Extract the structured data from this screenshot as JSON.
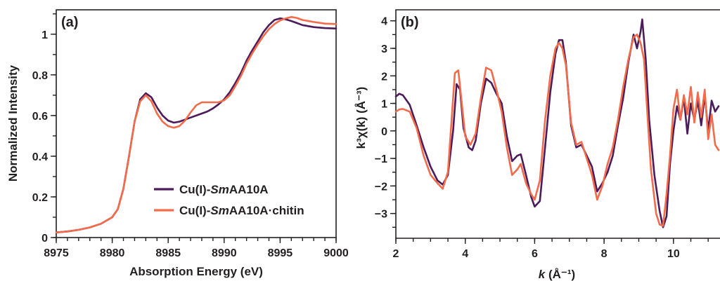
{
  "chart_data": [
    {
      "type": "line",
      "panel_label": "(a)",
      "xlabel": "Absorption Energy (eV)",
      "ylabel": "Normalized Intensity",
      "xlim": [
        8975,
        9000
      ],
      "ylim": [
        0,
        1.12
      ],
      "xticks": [
        8975,
        8980,
        8985,
        8990,
        8995,
        9000
      ],
      "xtick_labels": [
        "8975",
        "8980",
        "8985",
        "8990",
        "8995",
        "9000"
      ],
      "yticks": [
        0,
        0.2,
        0.4,
        0.6,
        0.8,
        1.0
      ],
      "ytick_labels": [
        "0",
        "0.2",
        "0.4",
        "0.6",
        "0.8",
        "1"
      ],
      "legend_position": "bottom-right",
      "series": [
        {
          "name_prefix": "Cu(I)-",
          "name_italic": "Sm",
          "name_suffix": "AA10A",
          "color": "#4b1b5a",
          "x": [
            8975,
            8976,
            8977,
            8978,
            8979,
            8980,
            8980.5,
            8981,
            8981.5,
            8982,
            8982.5,
            8983,
            8983.5,
            8984,
            8984.5,
            8985,
            8985.5,
            8986,
            8986.5,
            8987,
            8987.5,
            8988,
            8988.5,
            8989,
            8989.5,
            8990,
            8990.5,
            8991,
            8991.5,
            8992,
            8992.5,
            8993,
            8993.5,
            8994,
            8994.5,
            8995,
            8995.5,
            8996,
            8996.5,
            8997,
            8998,
            8999,
            9000
          ],
          "y": [
            0.025,
            0.03,
            0.038,
            0.05,
            0.068,
            0.1,
            0.14,
            0.24,
            0.4,
            0.57,
            0.68,
            0.71,
            0.69,
            0.64,
            0.6,
            0.575,
            0.565,
            0.57,
            0.58,
            0.59,
            0.6,
            0.61,
            0.62,
            0.635,
            0.655,
            0.68,
            0.715,
            0.76,
            0.81,
            0.87,
            0.92,
            0.965,
            1.01,
            1.045,
            1.07,
            1.078,
            1.073,
            1.065,
            1.055,
            1.045,
            1.035,
            1.03,
            1.028
          ]
        },
        {
          "name_prefix": "Cu(I)-",
          "name_italic": "Sm",
          "name_suffix": "AA10A·chitin",
          "color": "#f26b4a",
          "x": [
            8975,
            8976,
            8977,
            8978,
            8979,
            8980,
            8980.5,
            8981,
            8981.5,
            8982,
            8982.5,
            8983,
            8983.5,
            8984,
            8984.5,
            8985,
            8985.5,
            8986,
            8986.5,
            8987,
            8987.5,
            8988,
            8988.5,
            8989,
            8989.5,
            8990,
            8990.5,
            8991,
            8991.5,
            8992,
            8992.5,
            8993,
            8993.5,
            8994,
            8994.5,
            8995,
            8995.5,
            8996,
            8996.5,
            8997,
            8998,
            8999,
            9000
          ],
          "y": [
            0.025,
            0.03,
            0.038,
            0.05,
            0.068,
            0.1,
            0.14,
            0.24,
            0.4,
            0.57,
            0.67,
            0.7,
            0.67,
            0.61,
            0.57,
            0.548,
            0.54,
            0.548,
            0.575,
            0.615,
            0.65,
            0.665,
            0.665,
            0.665,
            0.665,
            0.675,
            0.7,
            0.745,
            0.795,
            0.855,
            0.905,
            0.95,
            0.99,
            1.025,
            1.05,
            1.068,
            1.078,
            1.085,
            1.08,
            1.07,
            1.06,
            1.052,
            1.05
          ]
        }
      ]
    },
    {
      "type": "line",
      "panel_label": "(b)",
      "xlabel_italic": "k",
      "xlabel_rest": " (Å⁻¹)",
      "ylabel_html": "k³χ(k) (Å⁻³)",
      "xlim": [
        2,
        11.3
      ],
      "ylim": [
        -3.9,
        4.4
      ],
      "xticks": [
        2,
        4,
        6,
        8,
        10
      ],
      "xtick_labels": [
        "2",
        "4",
        "6",
        "8",
        "10"
      ],
      "yticks": [
        -3,
        -2,
        -1,
        0,
        1,
        2,
        3,
        4
      ],
      "ytick_labels": [
        "−3",
        "−2",
        "−1",
        "0",
        "1",
        "2",
        "3",
        "4"
      ],
      "series": [
        {
          "color": "#4b1b5a",
          "x": [
            2.0,
            2.1,
            2.2,
            2.4,
            2.6,
            2.8,
            3.0,
            3.2,
            3.35,
            3.5,
            3.65,
            3.75,
            3.85,
            3.95,
            4.1,
            4.2,
            4.3,
            4.45,
            4.6,
            4.75,
            4.9,
            5.05,
            5.2,
            5.35,
            5.5,
            5.6,
            5.75,
            5.9,
            6.0,
            6.15,
            6.3,
            6.45,
            6.6,
            6.7,
            6.8,
            6.9,
            7.05,
            7.2,
            7.35,
            7.5,
            7.65,
            7.8,
            7.95,
            8.1,
            8.25,
            8.4,
            8.55,
            8.7,
            8.85,
            8.95,
            9.05,
            9.1,
            9.2,
            9.3,
            9.45,
            9.6,
            9.7,
            9.8,
            9.9,
            10.0,
            10.1,
            10.2,
            10.3,
            10.4,
            10.5,
            10.6,
            10.7,
            10.8,
            10.9,
            11.0,
            11.1,
            11.2,
            11.3
          ],
          "y": [
            1.25,
            1.35,
            1.3,
            0.95,
            0.2,
            -0.6,
            -1.3,
            -1.8,
            -1.95,
            -1.6,
            0.0,
            1.7,
            1.5,
            0.1,
            -0.6,
            -0.7,
            -0.35,
            1.0,
            1.9,
            1.75,
            1.35,
            1.0,
            -0.2,
            -1.1,
            -0.9,
            -0.85,
            -1.6,
            -2.4,
            -2.75,
            -2.55,
            -0.6,
            1.4,
            2.8,
            3.3,
            3.3,
            2.5,
            0.2,
            -0.6,
            -0.5,
            -0.9,
            -1.3,
            -2.2,
            -1.9,
            -1.5,
            -0.9,
            0.2,
            1.2,
            2.5,
            3.5,
            3.0,
            3.6,
            4.05,
            2.6,
            0.4,
            -1.6,
            -2.9,
            -3.5,
            -3.1,
            -1.2,
            0.0,
            0.9,
            0.4,
            1.2,
            -0.1,
            1.0,
            0.4,
            1.1,
            0.2,
            1.3,
            0.0,
            1.1,
            0.7,
            0.9
          ]
        },
        {
          "color": "#f26b4a",
          "x": [
            2.0,
            2.1,
            2.2,
            2.4,
            2.6,
            2.8,
            3.0,
            3.2,
            3.35,
            3.5,
            3.6,
            3.7,
            3.8,
            3.9,
            4.0,
            4.15,
            4.3,
            4.45,
            4.6,
            4.75,
            4.9,
            5.05,
            5.2,
            5.35,
            5.5,
            5.6,
            5.75,
            5.9,
            6.0,
            6.15,
            6.3,
            6.45,
            6.6,
            6.7,
            6.8,
            6.9,
            7.05,
            7.2,
            7.35,
            7.5,
            7.65,
            7.8,
            7.95,
            8.1,
            8.25,
            8.4,
            8.55,
            8.7,
            8.85,
            8.95,
            9.05,
            9.15,
            9.25,
            9.35,
            9.5,
            9.6,
            9.7,
            9.8,
            9.9,
            10.0,
            10.1,
            10.2,
            10.3,
            10.4,
            10.5,
            10.6,
            10.7,
            10.8,
            10.9,
            11.0,
            11.1,
            11.2,
            11.3
          ],
          "y": [
            0.7,
            0.78,
            0.8,
            0.7,
            0.1,
            -0.9,
            -1.6,
            -1.9,
            -2.1,
            -1.5,
            0.3,
            2.1,
            2.2,
            1.0,
            -0.2,
            -0.5,
            -0.1,
            1.2,
            2.3,
            2.2,
            1.5,
            0.7,
            -0.6,
            -1.6,
            -1.4,
            -1.2,
            -1.9,
            -2.3,
            -2.5,
            -1.8,
            0.4,
            2.0,
            3.0,
            3.2,
            3.0,
            2.4,
            0.3,
            -0.5,
            -0.4,
            -1.0,
            -1.6,
            -2.5,
            -2.0,
            -1.2,
            -0.6,
            0.4,
            1.6,
            2.6,
            3.4,
            3.5,
            3.2,
            2.6,
            0.6,
            -1.4,
            -3.0,
            -3.4,
            -3.45,
            -2.3,
            -0.9,
            0.8,
            1.5,
            0.4,
            1.3,
            0.6,
            1.6,
            0.3,
            1.4,
            0.5,
            1.5,
            -0.3,
            0.6,
            -0.5,
            -0.7
          ]
        }
      ]
    }
  ]
}
